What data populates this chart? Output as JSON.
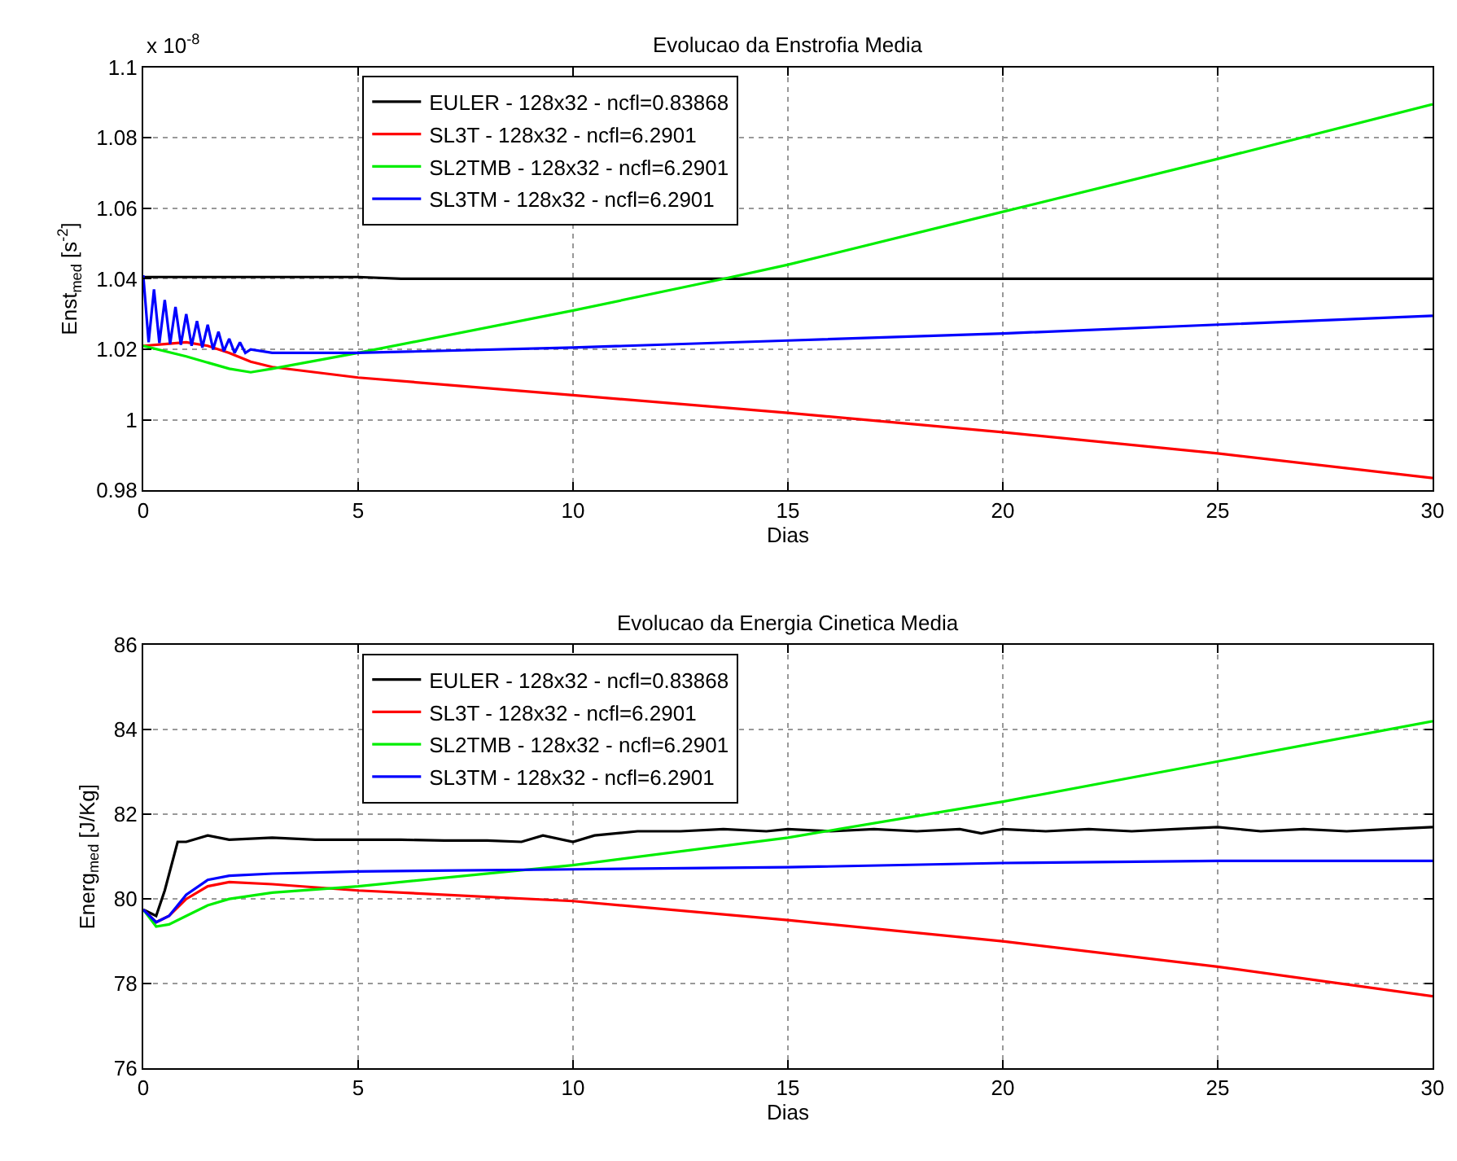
{
  "chart_data": [
    {
      "type": "line",
      "title": "Evolucao da Enstrofia Media",
      "xlabel": "Dias",
      "ylabel": "Enst$_{med}$ [s$^{-2}$]",
      "annotations": [
        "x 10$^{-8}$"
      ],
      "xlim": [
        0,
        30
      ],
      "xticks": [
        0,
        5,
        10,
        15,
        20,
        25,
        30
      ],
      "ylim": [
        0.98,
        1.1
      ],
      "yticks": [
        0.98,
        1,
        1.02,
        1.04,
        1.06,
        1.08,
        1.1
      ],
      "grid": true,
      "legend": "top left",
      "line_style": "solid",
      "marker": "none",
      "series": [
        {
          "name": "EULER - 128x32 - ncfl=0.83868",
          "color": "#000000",
          "x": [
            0,
            1,
            2,
            3,
            4,
            5,
            6,
            10,
            15,
            20,
            25,
            30
          ],
          "values": [
            1.0405,
            1.0405,
            1.0405,
            1.0405,
            1.0405,
            1.0405,
            1.04,
            1.04,
            1.04,
            1.04,
            1.04,
            1.04
          ]
        },
        {
          "name": "SL3T - 128x32 - ncfl=6.2901",
          "color": "#ff0000",
          "x": [
            0,
            0.5,
            1,
            1.5,
            2,
            2.5,
            3,
            5,
            10,
            15,
            20,
            25,
            30
          ],
          "values": [
            1.021,
            1.0215,
            1.022,
            1.021,
            1.019,
            1.0165,
            1.015,
            1.012,
            1.007,
            1.002,
            0.9965,
            0.9905,
            0.9835
          ]
        },
        {
          "name": "SL2TMB - 128x32 - ncfl=6.2901",
          "color": "#00ee00",
          "x": [
            0,
            1,
            2,
            2.5,
            3,
            5,
            10,
            13.5,
            15,
            20,
            25,
            30
          ],
          "values": [
            1.021,
            1.018,
            1.0145,
            1.0135,
            1.0145,
            1.019,
            1.031,
            1.04,
            1.044,
            1.059,
            1.074,
            1.0895
          ]
        },
        {
          "name": "SL3TM - 128x32 - ncfl=6.2901",
          "color": "#0000ff",
          "x": [
            0,
            0.125,
            0.25,
            0.375,
            0.5,
            0.625,
            0.75,
            0.875,
            1,
            1.125,
            1.25,
            1.375,
            1.5,
            1.625,
            1.75,
            1.875,
            2,
            2.125,
            2.25,
            2.375,
            2.5,
            3,
            5,
            10,
            15,
            20,
            25,
            30
          ],
          "values": [
            1.041,
            1.022,
            1.037,
            1.0218,
            1.034,
            1.0215,
            1.032,
            1.0213,
            1.03,
            1.021,
            1.028,
            1.0205,
            1.027,
            1.02,
            1.025,
            1.0195,
            1.023,
            1.019,
            1.022,
            1.019,
            1.02,
            1.019,
            1.019,
            1.0205,
            1.0225,
            1.0245,
            1.027,
            1.0295
          ]
        }
      ]
    },
    {
      "type": "line",
      "title": "Evolucao da Energia Cinetica Media",
      "xlabel": "Dias",
      "ylabel": "Energ$_{med}$ [J/Kg]",
      "xlim": [
        0,
        30
      ],
      "xticks": [
        0,
        5,
        10,
        15,
        20,
        25,
        30
      ],
      "ylim": [
        76,
        86
      ],
      "yticks": [
        76,
        78,
        80,
        82,
        84,
        86
      ],
      "grid": true,
      "legend": "top left",
      "line_style": "solid",
      "marker": "none",
      "series": [
        {
          "name": "EULER - 128x32 - ncfl=0.83868",
          "color": "#000000",
          "x": [
            0,
            0.3,
            0.5,
            0.8,
            1,
            1.5,
            2,
            3,
            4,
            5,
            6,
            7,
            8,
            8.8,
            9.3,
            10,
            10.5,
            11.5,
            12.5,
            13.5,
            14.5,
            15,
            16,
            17,
            18,
            19,
            19.5,
            20,
            21,
            22,
            23,
            24,
            25,
            26,
            27,
            28,
            29,
            30
          ],
          "values": [
            79.75,
            79.6,
            80.2,
            81.35,
            81.35,
            81.5,
            81.4,
            81.45,
            81.4,
            81.4,
            81.4,
            81.38,
            81.38,
            81.35,
            81.5,
            81.35,
            81.5,
            81.6,
            81.6,
            81.65,
            81.6,
            81.65,
            81.6,
            81.65,
            81.6,
            81.65,
            81.55,
            81.65,
            81.6,
            81.65,
            81.6,
            81.65,
            81.7,
            81.6,
            81.65,
            81.6,
            81.65,
            81.7
          ]
        },
        {
          "name": "SL3T - 128x32 - ncfl=6.2901",
          "color": "#ff0000",
          "x": [
            0,
            0.3,
            0.6,
            1,
            1.5,
            2,
            3,
            5,
            10,
            15,
            20,
            25,
            30
          ],
          "values": [
            79.75,
            79.45,
            79.6,
            80.0,
            80.3,
            80.4,
            80.35,
            80.2,
            79.95,
            79.5,
            79.0,
            78.4,
            77.7
          ]
        },
        {
          "name": "SL2TMB - 128x32 - ncfl=6.2901",
          "color": "#00ee00",
          "x": [
            0,
            0.3,
            0.6,
            1,
            1.5,
            2,
            3,
            5,
            10,
            15,
            20,
            25,
            30
          ],
          "values": [
            79.75,
            79.35,
            79.4,
            79.6,
            79.85,
            80.0,
            80.15,
            80.3,
            80.8,
            81.45,
            82.3,
            83.25,
            84.2
          ]
        },
        {
          "name": "SL3TM - 128x32 - ncfl=6.2901",
          "color": "#0000ff",
          "x": [
            0,
            0.3,
            0.6,
            1,
            1.5,
            2,
            3,
            5,
            10,
            15,
            20,
            25,
            30
          ],
          "values": [
            79.75,
            79.45,
            79.6,
            80.1,
            80.45,
            80.55,
            80.6,
            80.65,
            80.7,
            80.75,
            80.85,
            80.9,
            80.9
          ]
        }
      ]
    }
  ]
}
